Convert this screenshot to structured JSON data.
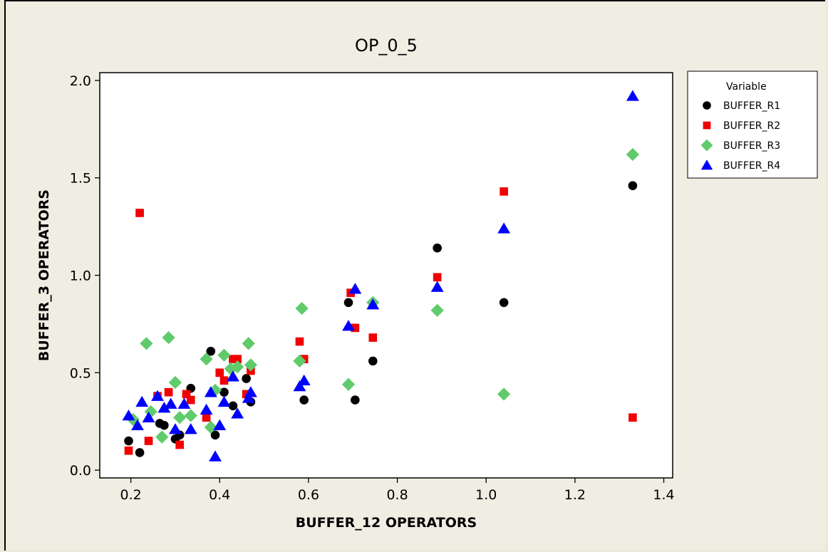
{
  "chart_data": {
    "type": "scatter",
    "title": "OP_0_5",
    "xlabel": "BUFFER_12 OPERATORS",
    "ylabel": "BUFFER_3 OPERATORS",
    "xlim": [
      0.13,
      1.42
    ],
    "ylim": [
      -0.04,
      2.04
    ],
    "xticks": [
      0.2,
      0.4,
      0.6,
      0.8,
      1.0,
      1.2,
      1.4
    ],
    "xtick_labels": [
      "0.2",
      "0.4",
      "0.6",
      "0.8",
      "1.0",
      "1.2",
      "1.4"
    ],
    "yticks": [
      0.0,
      0.5,
      1.0,
      1.5,
      2.0
    ],
    "ytick_labels": [
      "0.0",
      "0.5",
      "1.0",
      "1.5",
      "2.0"
    ],
    "grid": false,
    "legend": {
      "title": "Variable",
      "placement": "right"
    },
    "series": [
      {
        "name": "BUFFER_R1",
        "color": "#000000",
        "marker": "circle",
        "points": [
          [
            0.195,
            0.15
          ],
          [
            0.22,
            0.09
          ],
          [
            0.265,
            0.24
          ],
          [
            0.275,
            0.23
          ],
          [
            0.3,
            0.16
          ],
          [
            0.31,
            0.18
          ],
          [
            0.335,
            0.42
          ],
          [
            0.38,
            0.61
          ],
          [
            0.39,
            0.18
          ],
          [
            0.41,
            0.4
          ],
          [
            0.43,
            0.33
          ],
          [
            0.46,
            0.47
          ],
          [
            0.47,
            0.35
          ],
          [
            0.59,
            0.36
          ],
          [
            0.69,
            0.86
          ],
          [
            0.705,
            0.36
          ],
          [
            0.745,
            0.56
          ],
          [
            0.89,
            1.14
          ],
          [
            1.04,
            0.86
          ],
          [
            1.33,
            1.46
          ]
        ]
      },
      {
        "name": "BUFFER_R2",
        "color": "#F00000",
        "marker": "square",
        "points": [
          [
            0.195,
            0.1
          ],
          [
            0.22,
            1.32
          ],
          [
            0.24,
            0.15
          ],
          [
            0.26,
            0.38
          ],
          [
            0.285,
            0.4
          ],
          [
            0.31,
            0.13
          ],
          [
            0.325,
            0.39
          ],
          [
            0.335,
            0.36
          ],
          [
            0.37,
            0.27
          ],
          [
            0.4,
            0.5
          ],
          [
            0.41,
            0.46
          ],
          [
            0.43,
            0.57
          ],
          [
            0.44,
            0.57
          ],
          [
            0.46,
            0.39
          ],
          [
            0.47,
            0.51
          ],
          [
            0.58,
            0.66
          ],
          [
            0.59,
            0.57
          ],
          [
            0.695,
            0.91
          ],
          [
            0.705,
            0.73
          ],
          [
            0.745,
            0.68
          ],
          [
            0.89,
            0.99
          ],
          [
            1.04,
            1.43
          ],
          [
            1.33,
            0.27
          ]
        ]
      },
      {
        "name": "BUFFER_R3",
        "color": "#5FCB6B",
        "marker": "diamond",
        "points": [
          [
            0.205,
            0.26
          ],
          [
            0.235,
            0.65
          ],
          [
            0.245,
            0.3
          ],
          [
            0.27,
            0.17
          ],
          [
            0.285,
            0.68
          ],
          [
            0.3,
            0.45
          ],
          [
            0.31,
            0.27
          ],
          [
            0.335,
            0.28
          ],
          [
            0.37,
            0.57
          ],
          [
            0.38,
            0.22
          ],
          [
            0.39,
            0.41
          ],
          [
            0.41,
            0.59
          ],
          [
            0.425,
            0.52
          ],
          [
            0.44,
            0.53
          ],
          [
            0.465,
            0.65
          ],
          [
            0.47,
            0.54
          ],
          [
            0.585,
            0.83
          ],
          [
            0.58,
            0.56
          ],
          [
            0.69,
            0.44
          ],
          [
            0.745,
            0.86
          ],
          [
            0.89,
            0.82
          ],
          [
            1.04,
            0.39
          ],
          [
            1.33,
            1.62
          ]
        ]
      },
      {
        "name": "BUFFER_R4",
        "color": "#0000FF",
        "marker": "triangle",
        "points": [
          [
            0.195,
            0.28
          ],
          [
            0.215,
            0.23
          ],
          [
            0.225,
            0.35
          ],
          [
            0.24,
            0.27
          ],
          [
            0.26,
            0.38
          ],
          [
            0.275,
            0.32
          ],
          [
            0.29,
            0.34
          ],
          [
            0.3,
            0.21
          ],
          [
            0.32,
            0.34
          ],
          [
            0.335,
            0.21
          ],
          [
            0.37,
            0.31
          ],
          [
            0.38,
            0.4
          ],
          [
            0.39,
            0.07
          ],
          [
            0.4,
            0.23
          ],
          [
            0.41,
            0.35
          ],
          [
            0.43,
            0.48
          ],
          [
            0.44,
            0.29
          ],
          [
            0.465,
            0.37
          ],
          [
            0.47,
            0.4
          ],
          [
            0.58,
            0.43
          ],
          [
            0.59,
            0.46
          ],
          [
            0.69,
            0.74
          ],
          [
            0.705,
            0.93
          ],
          [
            0.745,
            0.85
          ],
          [
            0.89,
            0.94
          ],
          [
            1.04,
            1.24
          ],
          [
            1.33,
            1.92
          ]
        ]
      }
    ]
  }
}
